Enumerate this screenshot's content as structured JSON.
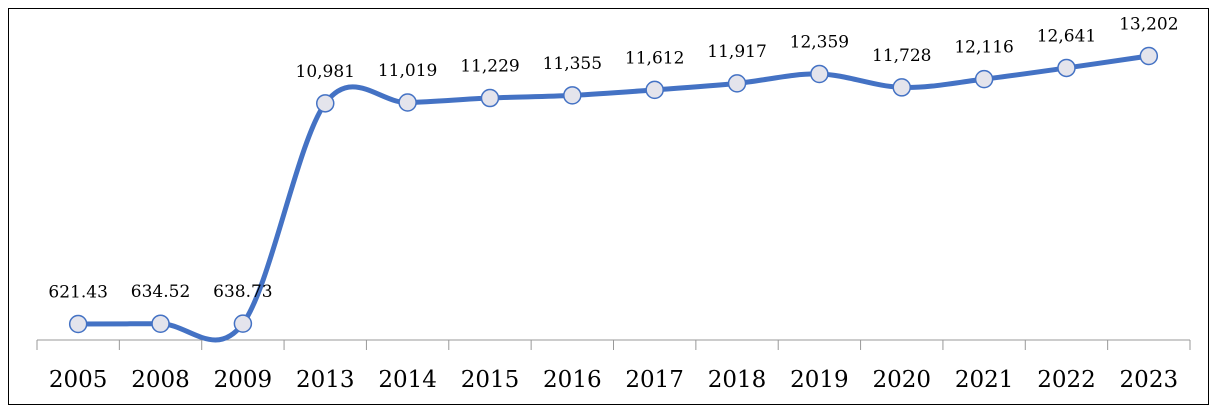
{
  "chart_data": {
    "type": "line",
    "categories": [
      "2005",
      "2008",
      "2009",
      "2013",
      "2014",
      "2015",
      "2016",
      "2017",
      "2018",
      "2019",
      "2020",
      "2021",
      "2022",
      "2023"
    ],
    "series": [
      {
        "color": "#4472c4",
        "values": [
          621.43,
          634.52,
          638.73,
          10981,
          11019,
          11229,
          11355,
          11612,
          11917,
          12359,
          11728,
          12116,
          12641,
          13202
        ],
        "value_labels": [
          "621.43",
          "634.52",
          "638.73",
          "10,981",
          "11,019",
          "11,229",
          "11,355",
          "11,612",
          "11,917",
          "12,359",
          "11,728",
          "12,116",
          "12,641",
          "13,202"
        ]
      }
    ],
    "smooth": true,
    "markers": true
  }
}
